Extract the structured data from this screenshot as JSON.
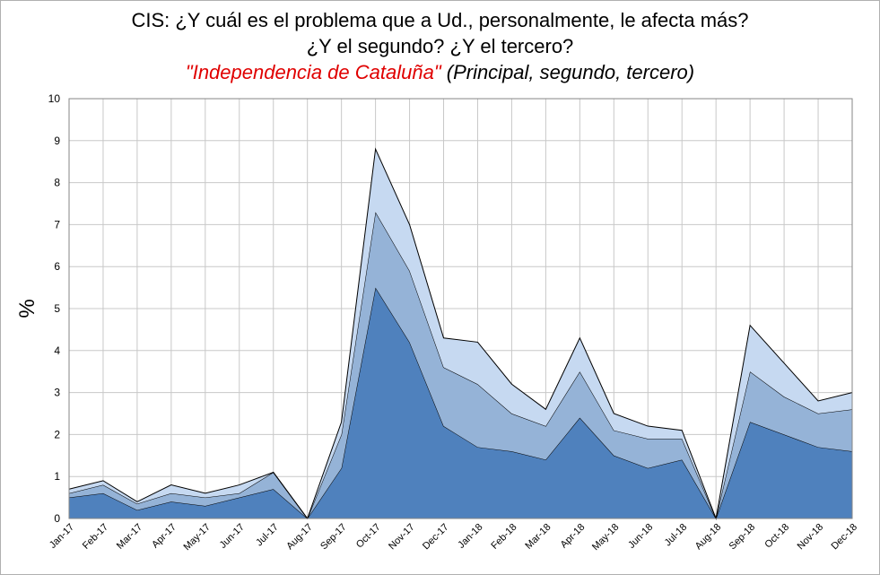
{
  "title": {
    "line1": "CIS: ¿Y cuál es el problema que a Ud., personalmente, le afecta más?",
    "line2": "¿Y el segundo? ¿Y el tercero?",
    "line3_red": "\"Independencia de Cataluña\"",
    "line3_rest": " (Principal, segundo, tercero)"
  },
  "chart_data": {
    "type": "area",
    "stacked": true,
    "ylabel": "%",
    "xlabel": "",
    "ylim": [
      0,
      10
    ],
    "yticks": [
      "0",
      "1",
      "2",
      "3",
      "4",
      "5",
      "6",
      "7",
      "8",
      "9",
      "10"
    ],
    "grid": true,
    "categories": [
      "Jan-17",
      "Feb-17",
      "Mar-17",
      "Apr-17",
      "May-17",
      "Jun-17",
      "Jul-17",
      "Aug-17",
      "Sep-17",
      "Oct-17",
      "Nov-17",
      "Dec-17",
      "Jan-18",
      "Feb-18",
      "Mar-18",
      "Apr-18",
      "May-18",
      "Jun-18",
      "Jul-18",
      "Aug-18",
      "Sep-18",
      "Oct-18",
      "Nov-18",
      "Dec-18"
    ],
    "series": [
      {
        "values": [
          0.5,
          0.6,
          0.2,
          0.4,
          0.3,
          0.5,
          0.7,
          0,
          1.2,
          5.5,
          4.2,
          2.2,
          1.7,
          1.6,
          1.4,
          2.4,
          1.5,
          1.2,
          1.4,
          0,
          2.3,
          2.0,
          1.7,
          1.6
        ],
        "color": "#4f81bd"
      },
      {
        "values": [
          0.1,
          0.2,
          0.15,
          0.2,
          0.2,
          0.1,
          0.4,
          0,
          0.8,
          1.8,
          1.7,
          1.4,
          1.5,
          0.9,
          0.8,
          1.1,
          0.6,
          0.7,
          0.5,
          0,
          1.2,
          0.9,
          0.8,
          1.0
        ],
        "color": "#95b3d7"
      },
      {
        "values": [
          0.1,
          0.1,
          0.05,
          0.2,
          0.1,
          0.2,
          0.0,
          0,
          0.3,
          1.5,
          1.1,
          0.7,
          1.0,
          0.7,
          0.4,
          0.8,
          0.4,
          0.3,
          0.2,
          0,
          1.1,
          0.8,
          0.3,
          0.4
        ],
        "color": "#c6d9f1"
      }
    ]
  }
}
